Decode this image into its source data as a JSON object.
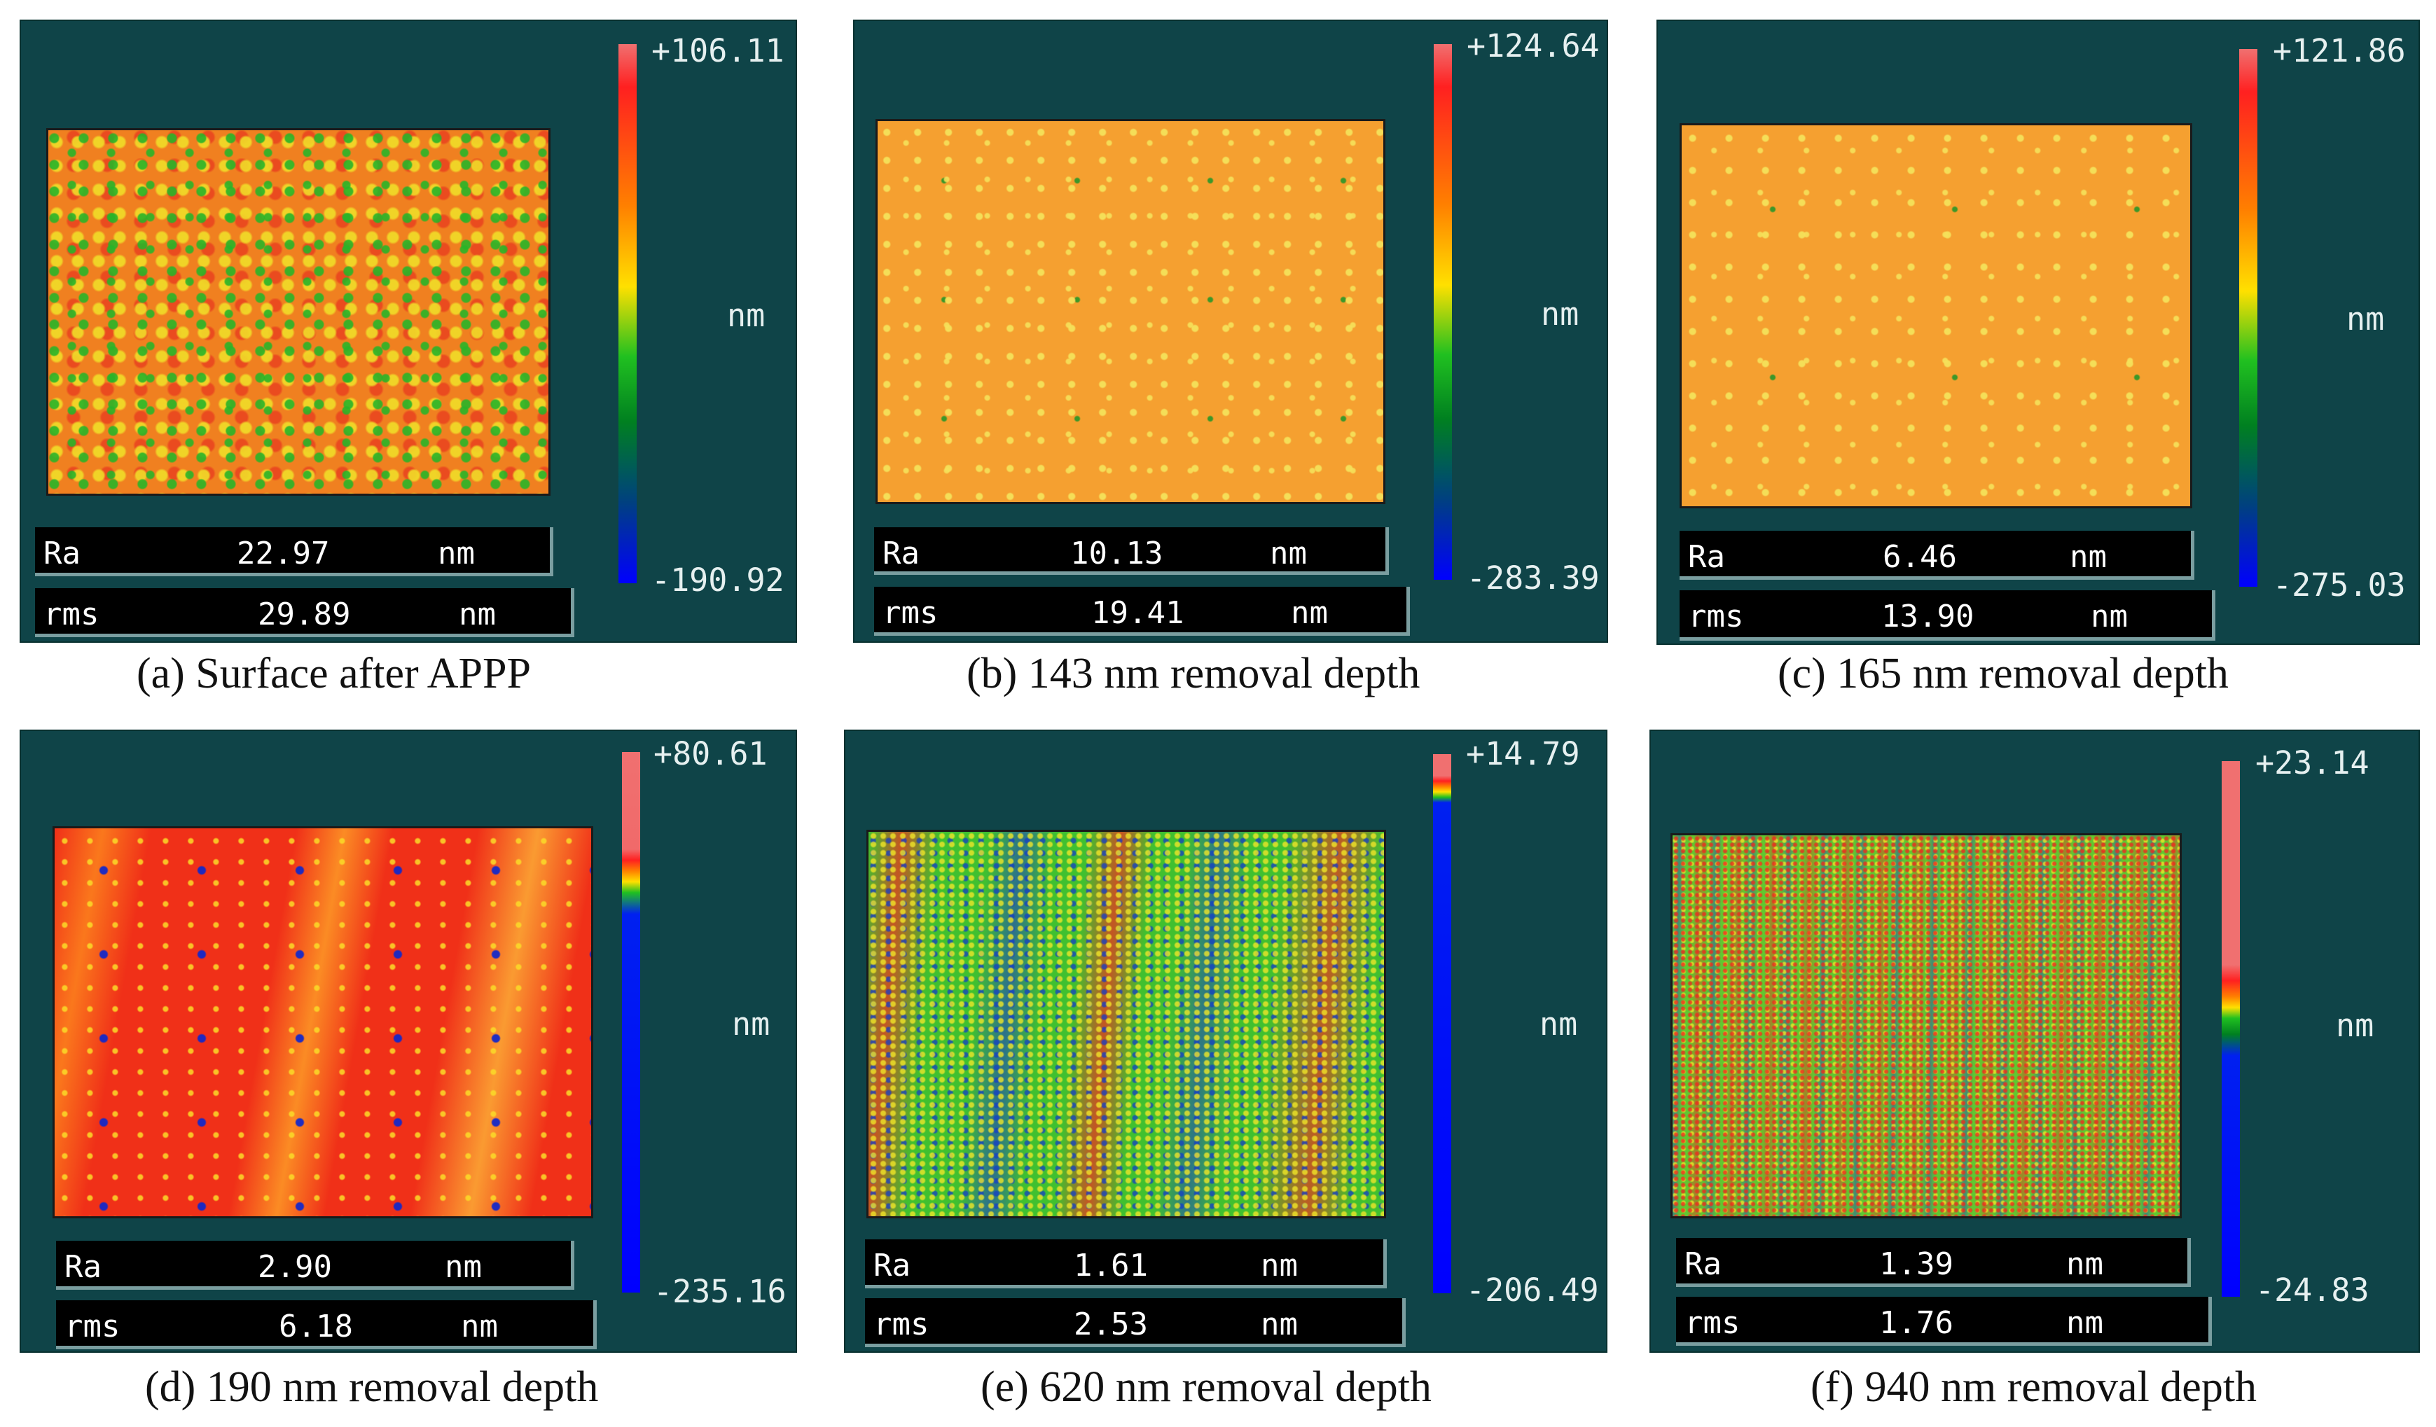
{
  "unit_label": "nm",
  "panels": [
    {
      "caption": "(a) Surface after APPP",
      "max": "+106.11",
      "min": "-190.92",
      "ra": {
        "label": "Ra",
        "value": "22.97",
        "unit": "nm"
      },
      "rms": {
        "label": "rms",
        "value": "29.89",
        "unit": "nm"
      }
    },
    {
      "caption": "(b)  143 nm removal depth",
      "max": "+124.64",
      "min": "-283.39",
      "ra": {
        "label": "Ra",
        "value": "10.13",
        "unit": "nm"
      },
      "rms": {
        "label": "rms",
        "value": "19.41",
        "unit": "nm"
      }
    },
    {
      "caption": "(c)  165 nm removal depth",
      "max": "+121.86",
      "min": "-275.03",
      "ra": {
        "label": "Ra",
        "value": "6.46",
        "unit": "nm"
      },
      "rms": {
        "label": "rms",
        "value": "13.90",
        "unit": "nm"
      }
    },
    {
      "caption": "(d) 190 nm removal depth",
      "max": "+80.61",
      "min": "-235.16",
      "ra": {
        "label": "Ra",
        "value": "2.90",
        "unit": "nm"
      },
      "rms": {
        "label": "rms",
        "value": "6.18",
        "unit": "nm"
      }
    },
    {
      "caption": "(e)  620 nm removal depth",
      "max": "+14.79",
      "min": "-206.49",
      "ra": {
        "label": "Ra",
        "value": "1.61",
        "unit": "nm"
      },
      "rms": {
        "label": "rms",
        "value": "2.53",
        "unit": "nm"
      }
    },
    {
      "caption": "(f)  940 nm removal depth",
      "max": "+23.14",
      "min": "-24.83",
      "ra": {
        "label": "Ra",
        "value": "1.39",
        "unit": "nm"
      },
      "rms": {
        "label": "rms",
        "value": "1.76",
        "unit": "nm"
      }
    }
  ],
  "colors": {
    "panel_bg": "#0f4448",
    "stat_bg": "#000000",
    "text_light": "#e6f0f0"
  }
}
